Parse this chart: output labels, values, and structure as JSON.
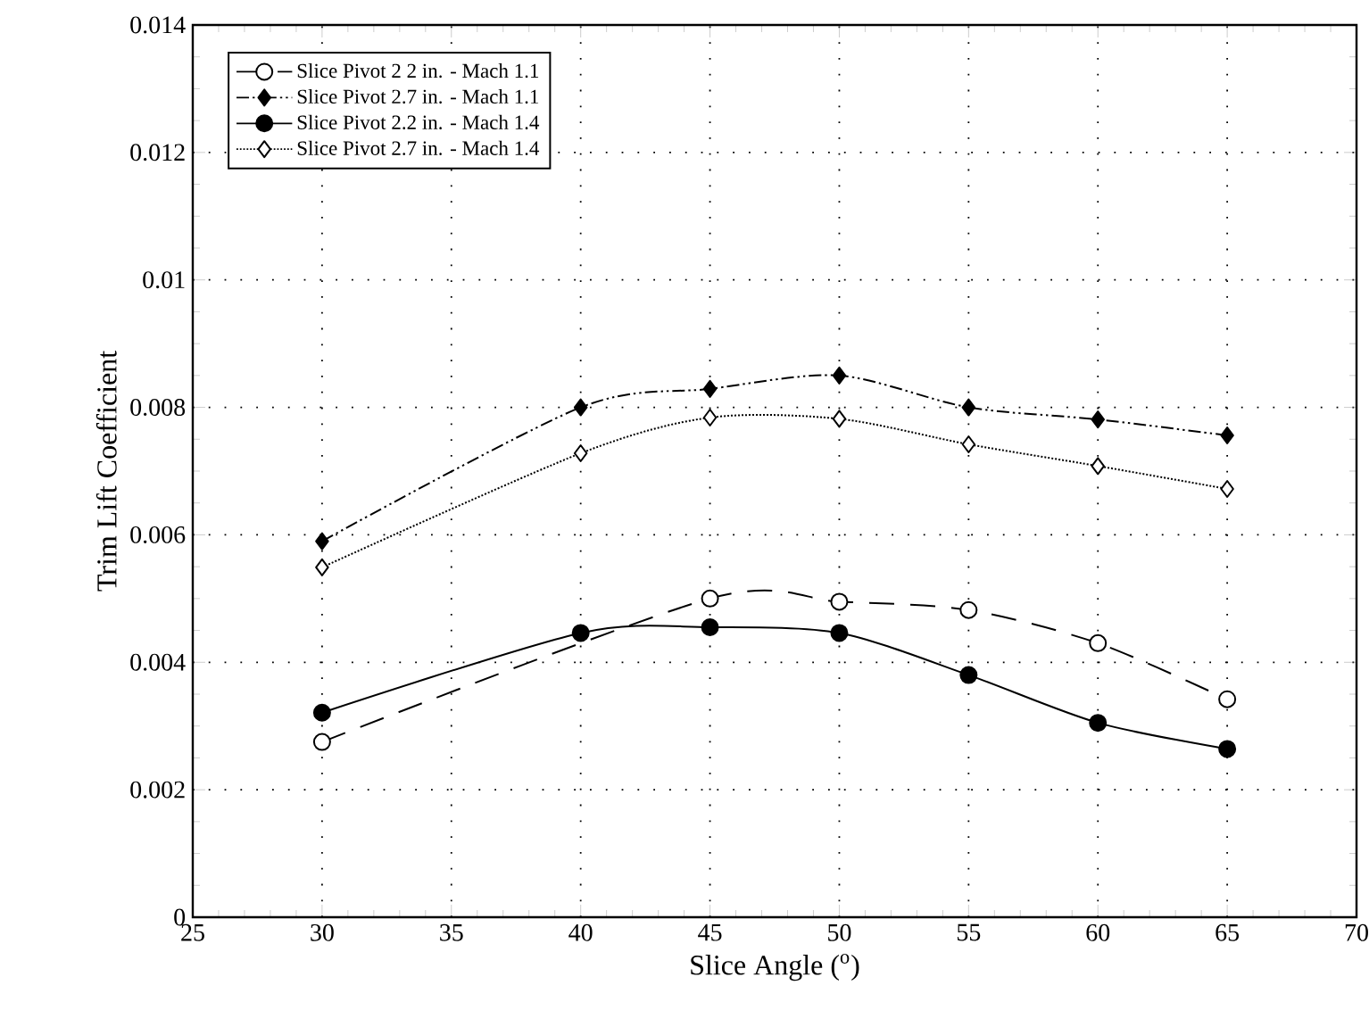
{
  "chart_data": {
    "type": "line",
    "xlabel": "Slice Angle ($^{o}$)",
    "ylabel": "Trim Lift Coefficient",
    "x": [
      30,
      40,
      45,
      50,
      55,
      60,
      65
    ],
    "series": [
      {
        "name": "Slice Pivot 2 2 in. - Mach 1.1",
        "color": "#000000",
        "marker": "circle",
        "line_style": "dashed",
        "values": [
          0.00275,
          null,
          0.005,
          0.00495,
          0.00482,
          0.0043,
          0.00342
        ]
      },
      {
        "name": "Slice Pivot 2.7 in. - Mach 1.1",
        "color": "#000000",
        "marker": "diamond",
        "line_style": "dashdotdot",
        "values": [
          0.0059,
          0.008,
          0.00829,
          0.0085,
          0.008,
          0.00781,
          0.00756
        ]
      },
      {
        "name": "Slice Pivot 2.2 in. - Mach 1.4",
        "color": "#000000",
        "marker": "circle",
        "line_style": "solid",
        "values": [
          0.00321,
          0.00446,
          0.00455,
          0.00446,
          0.0038,
          0.00305,
          0.00264
        ]
      },
      {
        "name": "Slice Pivot 2.7 in. - Mach 1.4",
        "color": "#000000",
        "marker": "diamond",
        "line_style": "dotted",
        "values": [
          0.00549,
          0.00728,
          0.00784,
          0.00782,
          0.00742,
          0.00708,
          0.00672
        ]
      }
    ],
    "xlim": [
      25,
      70
    ],
    "xticks": [
      25,
      30,
      35,
      40,
      45,
      50,
      55,
      60,
      65,
      70
    ],
    "ylim": [
      0,
      0.014
    ],
    "yticks": [
      0,
      0.002,
      0.004,
      0.006,
      0.008,
      0.01,
      0.012,
      0.014
    ],
    "grid": true,
    "legend": "top left"
  }
}
